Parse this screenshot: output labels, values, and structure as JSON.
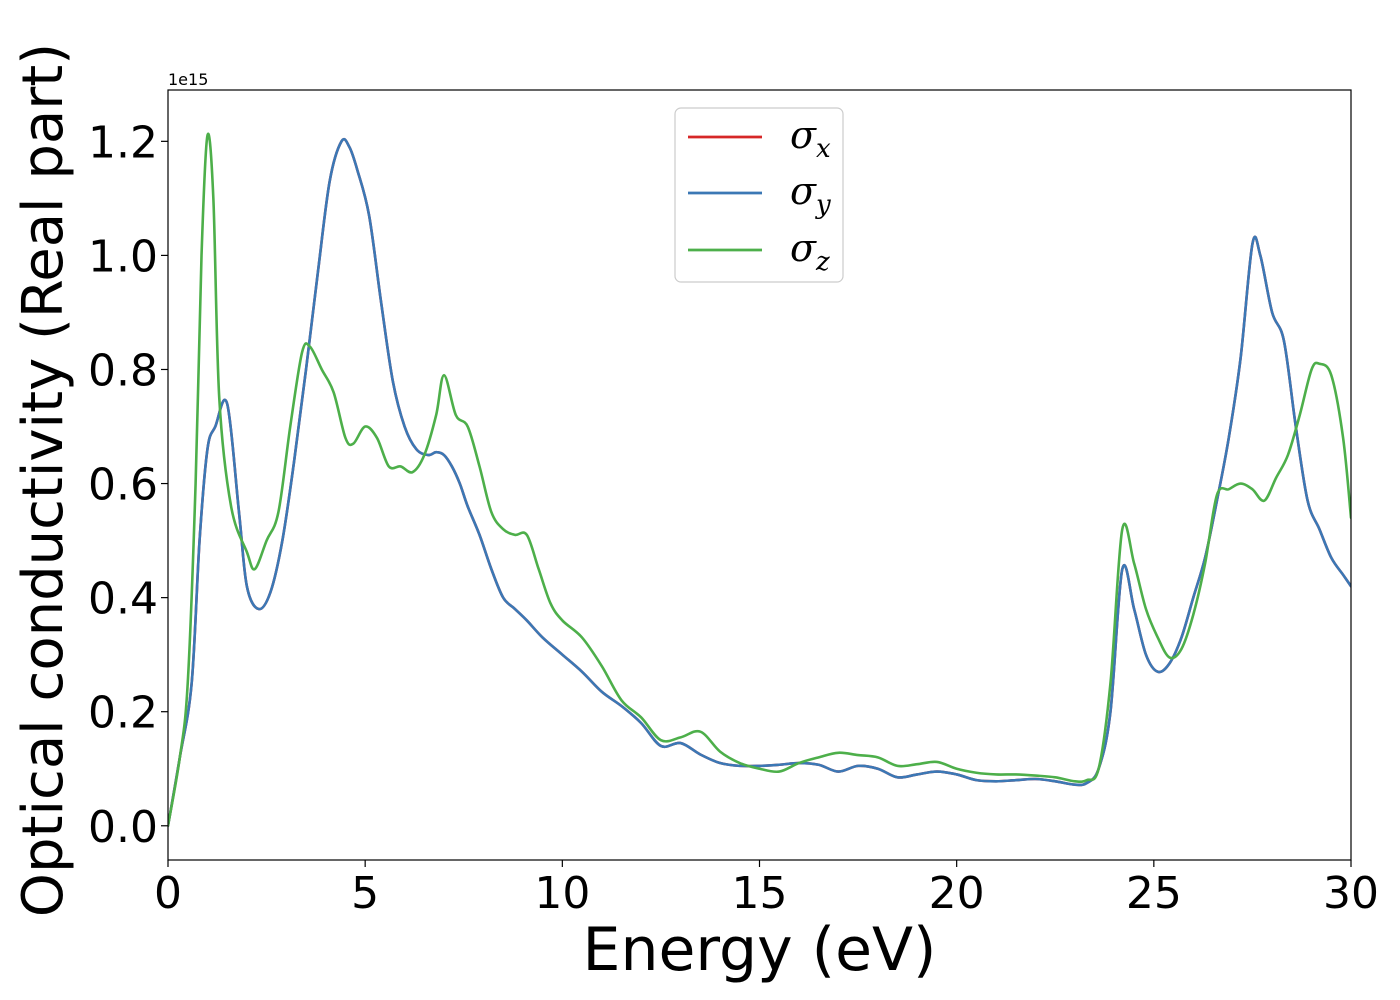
{
  "chart_data": {
    "type": "line",
    "xlabel": "Energy (eV)",
    "ylabel": "Optical conductivity (Real part)",
    "y_scale_note": "1e15",
    "xlim": [
      0,
      30
    ],
    "ylim": [
      -0.06,
      1.29
    ],
    "x_ticks": [
      0,
      5,
      10,
      15,
      20,
      25,
      30
    ],
    "x_tick_labels": [
      "0",
      "5",
      "10",
      "15",
      "20",
      "25",
      "30"
    ],
    "y_ticks": [
      0.0,
      0.2,
      0.4,
      0.6,
      0.8,
      1.0,
      1.2
    ],
    "y_tick_labels": [
      "0.0",
      "0.2",
      "0.4",
      "0.6",
      "0.8",
      "1.0",
      "1.2"
    ],
    "grid": false,
    "legend_position": "upper-center",
    "series": [
      {
        "name": "σx",
        "color": "#d62728",
        "x": [
          0,
          0.3,
          0.6,
          0.8,
          1.0,
          1.2,
          1.5,
          1.8,
          2.0,
          2.3,
          2.6,
          2.9,
          3.2,
          3.5,
          3.8,
          4.1,
          4.4,
          4.6,
          4.8,
          5.1,
          5.4,
          5.7,
          6.0,
          6.3,
          6.6,
          6.8,
          7.0,
          7.2,
          7.4,
          7.6,
          7.9,
          8.2,
          8.5,
          8.8,
          9.1,
          9.5,
          10.0,
          10.5,
          11.0,
          11.5,
          12.0,
          12.5,
          13.0,
          13.5,
          14.0,
          14.5,
          15.0,
          15.5,
          16.0,
          16.5,
          17.0,
          17.5,
          18.0,
          18.5,
          19.0,
          19.5,
          20.0,
          20.5,
          21.0,
          21.5,
          22.0,
          22.5,
          23.0,
          23.3,
          23.6,
          23.9,
          24.2,
          24.5,
          24.8,
          25.1,
          25.4,
          25.7,
          26.0,
          26.3,
          26.6,
          26.9,
          27.2,
          27.5,
          27.7,
          28.0,
          28.3,
          28.6,
          28.9,
          29.2,
          29.5,
          29.8,
          30.0
        ],
        "y": [
          0.0,
          0.12,
          0.25,
          0.5,
          0.66,
          0.7,
          0.74,
          0.55,
          0.42,
          0.38,
          0.41,
          0.5,
          0.64,
          0.8,
          0.97,
          1.13,
          1.2,
          1.19,
          1.15,
          1.07,
          0.92,
          0.78,
          0.7,
          0.66,
          0.65,
          0.655,
          0.65,
          0.63,
          0.6,
          0.56,
          0.51,
          0.45,
          0.4,
          0.38,
          0.36,
          0.33,
          0.3,
          0.27,
          0.235,
          0.21,
          0.18,
          0.14,
          0.145,
          0.125,
          0.11,
          0.105,
          0.105,
          0.107,
          0.11,
          0.107,
          0.095,
          0.105,
          0.1,
          0.085,
          0.09,
          0.095,
          0.09,
          0.08,
          0.078,
          0.08,
          0.082,
          0.078,
          0.072,
          0.075,
          0.1,
          0.2,
          0.45,
          0.38,
          0.3,
          0.27,
          0.285,
          0.33,
          0.4,
          0.47,
          0.57,
          0.68,
          0.82,
          1.02,
          1.0,
          0.9,
          0.85,
          0.7,
          0.57,
          0.52,
          0.47,
          0.44,
          0.42
        ]
      },
      {
        "name": "σy",
        "color": "#3b78b5",
        "x": [
          0,
          0.3,
          0.6,
          0.8,
          1.0,
          1.2,
          1.5,
          1.8,
          2.0,
          2.3,
          2.6,
          2.9,
          3.2,
          3.5,
          3.8,
          4.1,
          4.4,
          4.6,
          4.8,
          5.1,
          5.4,
          5.7,
          6.0,
          6.3,
          6.6,
          6.8,
          7.0,
          7.2,
          7.4,
          7.6,
          7.9,
          8.2,
          8.5,
          8.8,
          9.1,
          9.5,
          10.0,
          10.5,
          11.0,
          11.5,
          12.0,
          12.5,
          13.0,
          13.5,
          14.0,
          14.5,
          15.0,
          15.5,
          16.0,
          16.5,
          17.0,
          17.5,
          18.0,
          18.5,
          19.0,
          19.5,
          20.0,
          20.5,
          21.0,
          21.5,
          22.0,
          22.5,
          23.0,
          23.3,
          23.6,
          23.9,
          24.2,
          24.5,
          24.8,
          25.1,
          25.4,
          25.7,
          26.0,
          26.3,
          26.6,
          26.9,
          27.2,
          27.5,
          27.7,
          28.0,
          28.3,
          28.6,
          28.9,
          29.2,
          29.5,
          29.8,
          30.0
        ],
        "y": [
          0.0,
          0.12,
          0.25,
          0.5,
          0.66,
          0.7,
          0.74,
          0.55,
          0.42,
          0.38,
          0.41,
          0.5,
          0.64,
          0.8,
          0.97,
          1.13,
          1.2,
          1.19,
          1.15,
          1.07,
          0.92,
          0.78,
          0.7,
          0.66,
          0.65,
          0.655,
          0.65,
          0.63,
          0.6,
          0.56,
          0.51,
          0.45,
          0.4,
          0.38,
          0.36,
          0.33,
          0.3,
          0.27,
          0.235,
          0.21,
          0.18,
          0.14,
          0.145,
          0.125,
          0.11,
          0.105,
          0.105,
          0.107,
          0.11,
          0.107,
          0.095,
          0.105,
          0.1,
          0.085,
          0.09,
          0.095,
          0.09,
          0.08,
          0.078,
          0.08,
          0.082,
          0.078,
          0.072,
          0.075,
          0.1,
          0.2,
          0.45,
          0.38,
          0.3,
          0.27,
          0.285,
          0.33,
          0.4,
          0.47,
          0.57,
          0.68,
          0.82,
          1.02,
          1.0,
          0.9,
          0.85,
          0.7,
          0.57,
          0.52,
          0.47,
          0.44,
          0.42
        ]
      },
      {
        "name": "σz",
        "color": "#4daf4a",
        "x": [
          0,
          0.3,
          0.5,
          0.7,
          0.85,
          1.0,
          1.15,
          1.3,
          1.6,
          2.0,
          2.2,
          2.5,
          2.8,
          3.1,
          3.4,
          3.6,
          3.9,
          4.2,
          4.5,
          4.7,
          5.0,
          5.3,
          5.6,
          5.9,
          6.2,
          6.5,
          6.8,
          7.0,
          7.3,
          7.6,
          7.9,
          8.2,
          8.5,
          8.8,
          9.1,
          9.4,
          9.7,
          10.0,
          10.5,
          11.0,
          11.5,
          12.0,
          12.5,
          13.0,
          13.5,
          14.0,
          14.5,
          15.0,
          15.5,
          16.0,
          16.5,
          17.0,
          17.5,
          18.0,
          18.5,
          19.0,
          19.5,
          20.0,
          20.5,
          21.0,
          21.5,
          22.0,
          22.5,
          23.0,
          23.3,
          23.6,
          23.9,
          24.2,
          24.5,
          24.8,
          25.1,
          25.4,
          25.7,
          26.0,
          26.3,
          26.6,
          26.9,
          27.2,
          27.5,
          27.8,
          28.1,
          28.4,
          28.7,
          29.0,
          29.2,
          29.5,
          29.8,
          30.0
        ],
        "y": [
          0.0,
          0.12,
          0.25,
          0.6,
          1.0,
          1.21,
          1.1,
          0.75,
          0.56,
          0.48,
          0.45,
          0.5,
          0.55,
          0.7,
          0.83,
          0.84,
          0.8,
          0.76,
          0.68,
          0.67,
          0.7,
          0.68,
          0.63,
          0.63,
          0.62,
          0.65,
          0.72,
          0.79,
          0.72,
          0.7,
          0.63,
          0.55,
          0.52,
          0.51,
          0.51,
          0.45,
          0.39,
          0.36,
          0.33,
          0.28,
          0.22,
          0.19,
          0.15,
          0.155,
          0.165,
          0.13,
          0.11,
          0.1,
          0.095,
          0.11,
          0.12,
          0.128,
          0.124,
          0.12,
          0.105,
          0.108,
          0.112,
          0.1,
          0.093,
          0.09,
          0.09,
          0.088,
          0.085,
          0.078,
          0.08,
          0.1,
          0.25,
          0.52,
          0.46,
          0.38,
          0.33,
          0.295,
          0.31,
          0.37,
          0.46,
          0.58,
          0.59,
          0.6,
          0.59,
          0.57,
          0.61,
          0.65,
          0.72,
          0.8,
          0.81,
          0.79,
          0.68,
          0.54
        ]
      }
    ]
  }
}
